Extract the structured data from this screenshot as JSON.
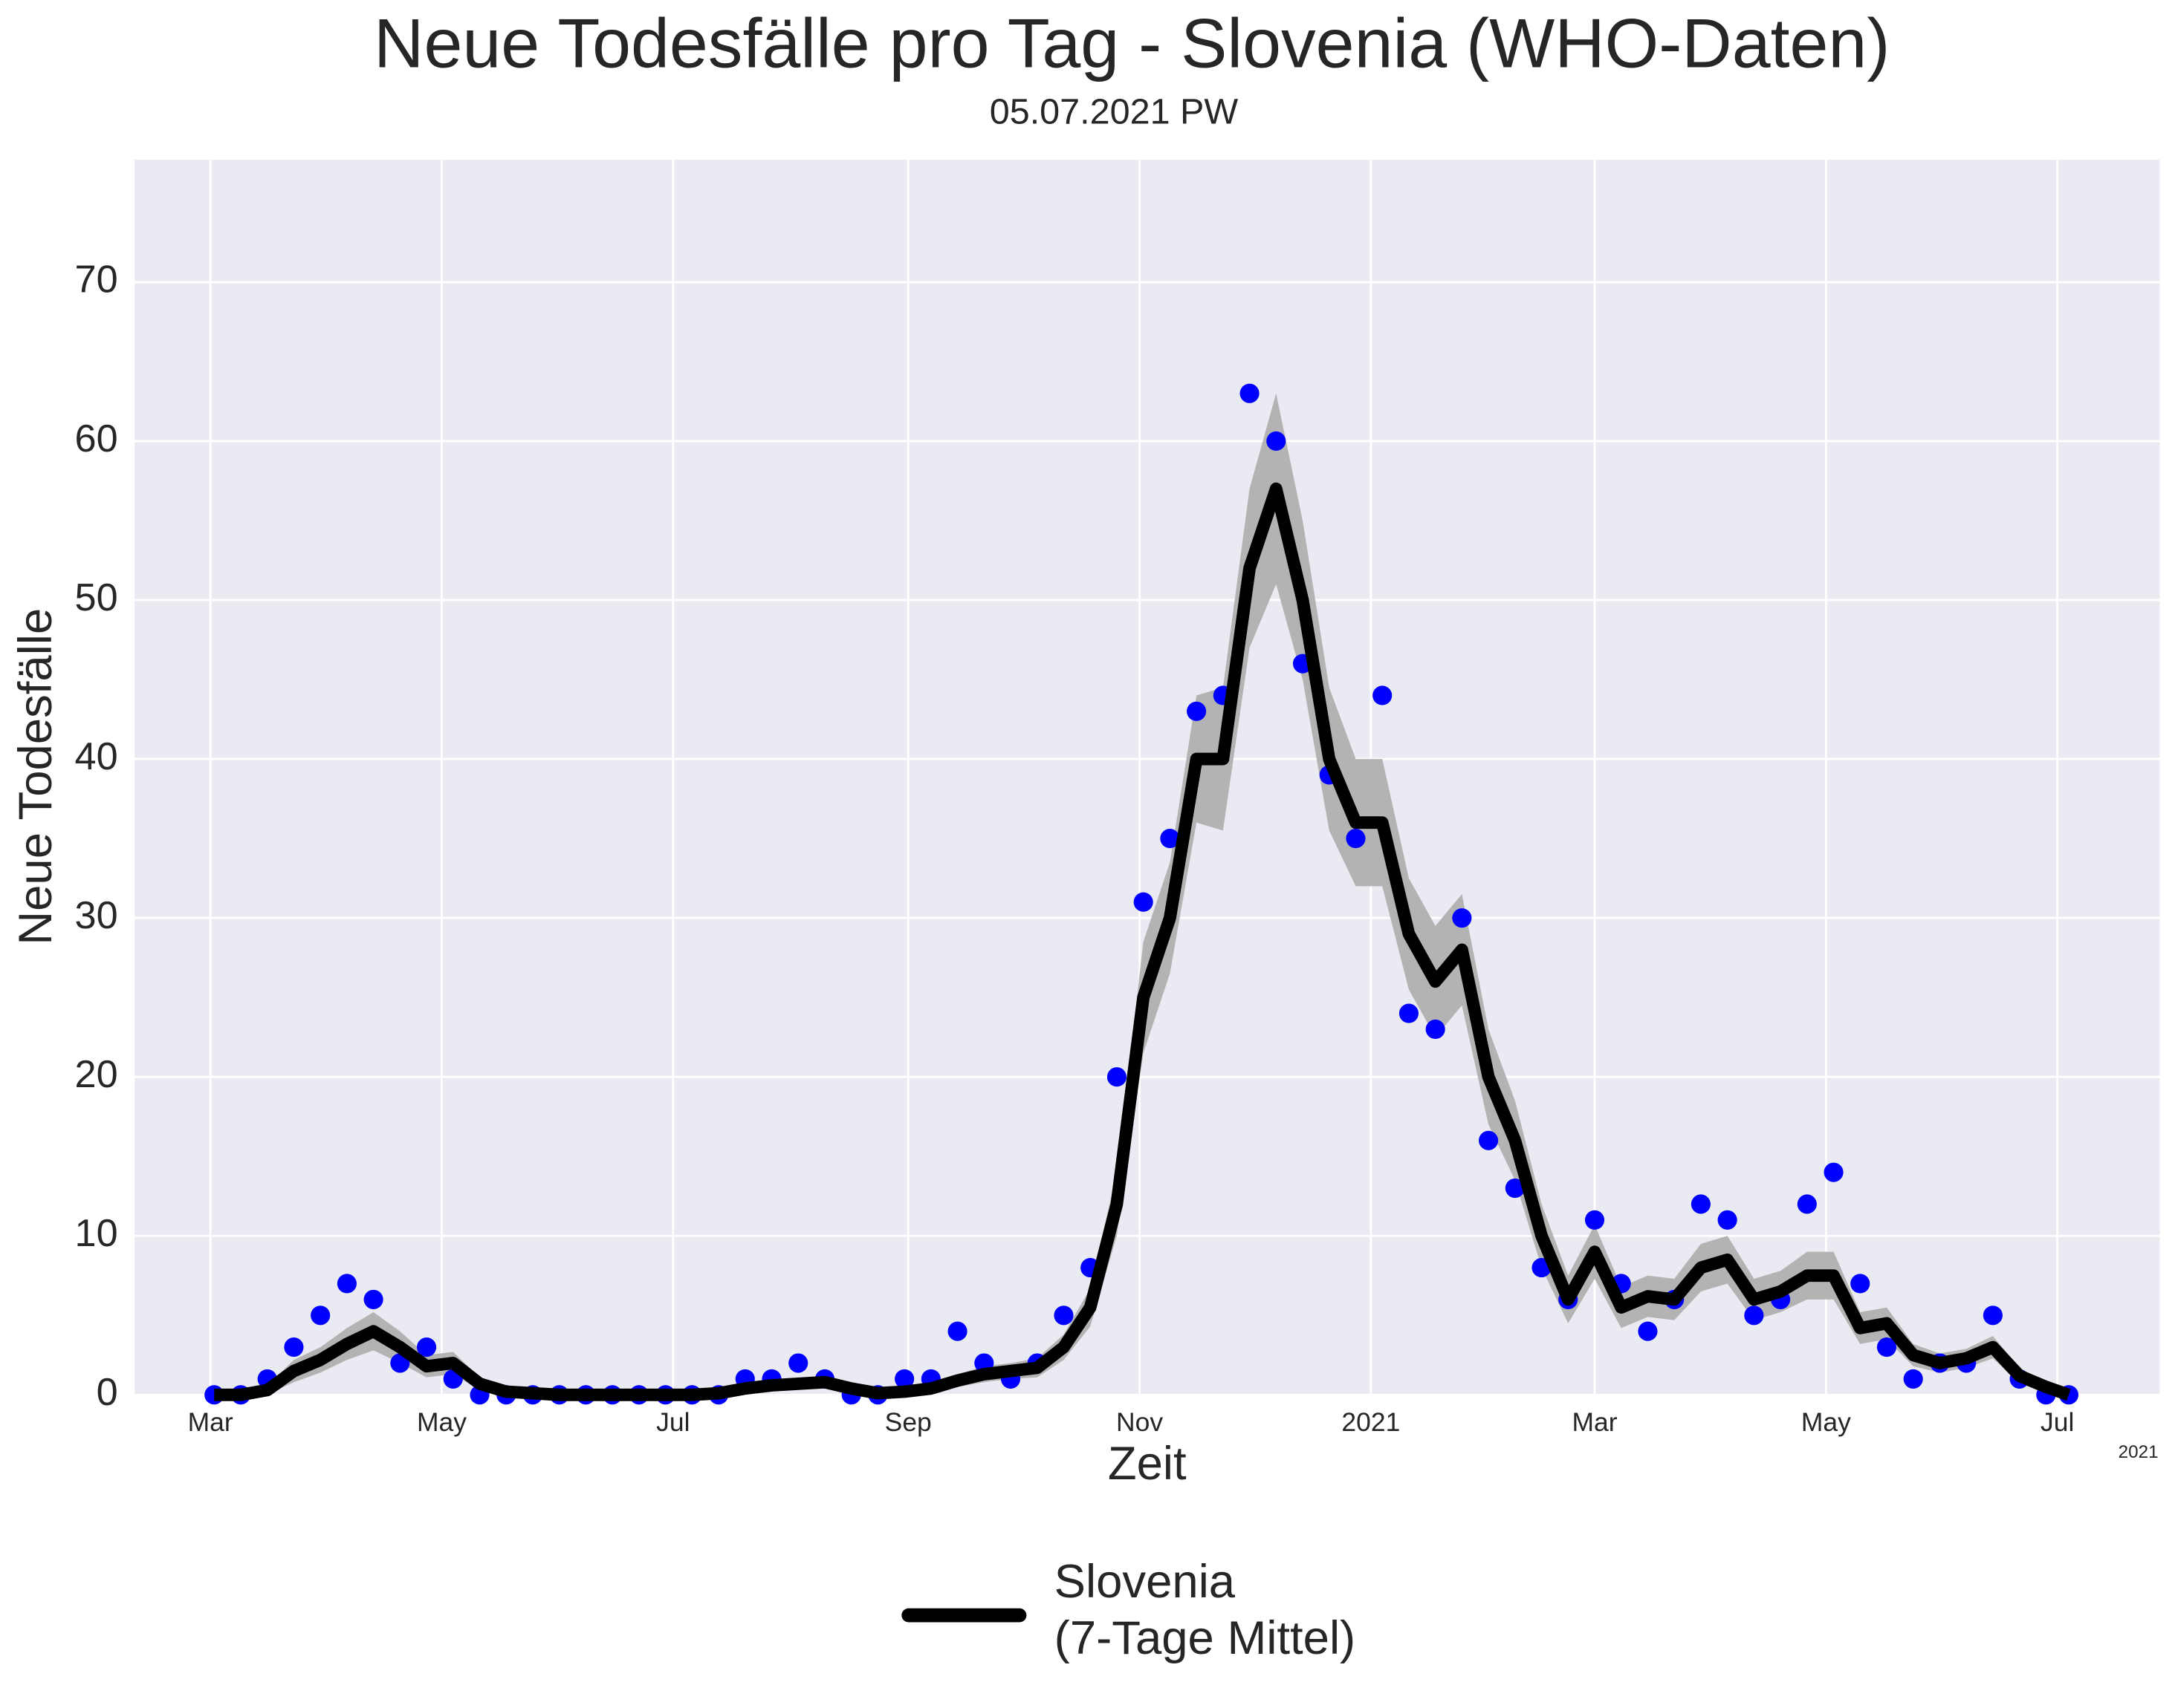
{
  "chart_data": {
    "type": "line",
    "title": "Neue Todesfälle pro Tag - Slovenia (WHO-Daten)",
    "subtitle": "05.07.2021 PW",
    "xlabel": "Zeit",
    "ylabel": "Neue Todesfälle",
    "x_offset_label": "2021",
    "x": [
      "2020-03-02",
      "2020-03-09",
      "2020-03-16",
      "2020-03-23",
      "2020-03-30",
      "2020-04-06",
      "2020-04-13",
      "2020-04-20",
      "2020-04-27",
      "2020-05-04",
      "2020-05-11",
      "2020-05-18",
      "2020-05-25",
      "2020-06-01",
      "2020-06-08",
      "2020-06-15",
      "2020-06-22",
      "2020-06-29",
      "2020-07-06",
      "2020-07-13",
      "2020-07-20",
      "2020-07-27",
      "2020-08-03",
      "2020-08-10",
      "2020-08-17",
      "2020-08-24",
      "2020-08-31",
      "2020-09-07",
      "2020-09-14",
      "2020-09-21",
      "2020-09-28",
      "2020-10-05",
      "2020-10-12",
      "2020-10-19",
      "2020-10-26",
      "2020-11-02",
      "2020-11-09",
      "2020-11-16",
      "2020-11-23",
      "2020-11-30",
      "2020-12-07",
      "2020-12-14",
      "2020-12-21",
      "2020-12-28",
      "2021-01-04",
      "2021-01-11",
      "2021-01-18",
      "2021-01-25",
      "2021-02-01",
      "2021-02-08",
      "2021-02-15",
      "2021-02-22",
      "2021-03-01",
      "2021-03-08",
      "2021-03-15",
      "2021-03-22",
      "2021-03-29",
      "2021-04-05",
      "2021-04-12",
      "2021-04-19",
      "2021-04-26",
      "2021-05-03",
      "2021-05-10",
      "2021-05-17",
      "2021-05-24",
      "2021-05-31",
      "2021-06-07",
      "2021-06-14",
      "2021-06-21",
      "2021-06-28",
      "2021-07-04"
    ],
    "series": [
      {
        "name": "Slovenia\n(7-Tage Mittel)",
        "color": "#000000",
        "values": [
          0,
          0,
          0.3,
          1.5,
          2.2,
          3.2,
          4,
          3,
          1.8,
          2,
          0.7,
          0.2,
          0.1,
          0,
          0,
          0,
          0,
          0,
          0,
          0.1,
          0.4,
          0.6,
          0.7,
          0.8,
          0.4,
          0.1,
          0.2,
          0.4,
          0.9,
          1.3,
          1.5,
          1.7,
          3,
          5.5,
          12,
          25,
          30,
          40,
          40,
          52,
          57,
          50,
          40,
          36,
          36,
          29,
          26,
          28,
          20,
          16,
          10,
          6,
          9,
          5.5,
          6.2,
          6,
          8,
          8.5,
          6,
          6.5,
          7.5,
          7.5,
          4.2,
          4.5,
          2.5,
          2,
          2.3,
          3,
          1.2,
          0.5,
          0
        ]
      }
    ],
    "points": {
      "color": "#0000ff",
      "values": [
        0,
        0,
        1,
        3,
        5,
        7,
        6,
        2,
        3,
        1,
        0,
        0,
        0,
        0,
        0,
        0,
        0,
        0,
        0,
        0,
        1,
        1,
        2,
        1,
        0,
        0,
        1,
        1,
        4,
        2,
        1,
        2,
        5,
        8,
        20,
        31,
        35,
        43,
        44,
        63,
        60,
        46,
        39,
        35,
        44,
        24,
        23,
        30,
        16,
        13,
        8,
        6,
        11,
        7,
        4,
        6,
        12,
        11,
        5,
        6,
        12,
        14,
        7,
        3,
        1,
        2,
        2,
        5,
        1,
        0,
        0
      ]
    },
    "band": {
      "color": "#b3b3b3",
      "upper": [
        0,
        0,
        0.6,
        2.2,
        3,
        4.2,
        5.2,
        4,
        2.5,
        2.7,
        1.1,
        0.4,
        0.2,
        0,
        0,
        0,
        0,
        0,
        0,
        0.2,
        0.6,
        0.9,
        1,
        1.1,
        0.6,
        0.2,
        0.4,
        0.7,
        1.3,
        1.8,
        2,
        2.3,
        3.8,
        6.7,
        14,
        28.5,
        33.5,
        44,
        44.5,
        57,
        63,
        55,
        44.5,
        40,
        40,
        32.5,
        29.5,
        31.5,
        23,
        18.5,
        12,
        7.5,
        10.7,
        6.8,
        7.5,
        7.3,
        9.5,
        10,
        7.3,
        7.8,
        9,
        9,
        5.2,
        5.5,
        3.2,
        2.6,
        2.9,
        3.7,
        1.7,
        0.8,
        0
      ],
      "lower": [
        0,
        0,
        0,
        0.8,
        1.4,
        2.2,
        2.8,
        2,
        1.1,
        1.3,
        0.3,
        0,
        0,
        0,
        0,
        0,
        0,
        0,
        0,
        0,
        0.2,
        0.3,
        0.4,
        0.5,
        0.2,
        0,
        0,
        0.1,
        0.5,
        0.8,
        1,
        1.1,
        2.2,
        4.3,
        10,
        21.5,
        26.5,
        36,
        35.5,
        47,
        51,
        45,
        35.5,
        32,
        32,
        25.5,
        22.5,
        24.5,
        17,
        13.5,
        8,
        4.5,
        7.3,
        4.2,
        4.9,
        4.7,
        6.5,
        7,
        4.7,
        5.2,
        6,
        6,
        3.2,
        3.5,
        1.8,
        1.4,
        1.7,
        2.3,
        0.7,
        0.2,
        0
      ]
    },
    "xlim": [
      "2020-02-10",
      "2021-07-28"
    ],
    "xticks": [
      {
        "value": "2020-03-01",
        "label": "Mar"
      },
      {
        "value": "2020-05-01",
        "label": "May"
      },
      {
        "value": "2020-07-01",
        "label": "Jul"
      },
      {
        "value": "2020-09-01",
        "label": "Sep"
      },
      {
        "value": "2020-11-01",
        "label": "Nov"
      },
      {
        "value": "2021-01-01",
        "label": "2021"
      },
      {
        "value": "2021-03-01",
        "label": "Mar"
      },
      {
        "value": "2021-05-01",
        "label": "May"
      },
      {
        "value": "2021-07-01",
        "label": "Jul"
      }
    ],
    "ylim": [
      0,
      77.7
    ],
    "yticks": [
      0,
      10,
      20,
      30,
      40,
      50,
      60,
      70
    ],
    "grid": true,
    "background": "#eaeaf2",
    "legend": "bottom"
  }
}
